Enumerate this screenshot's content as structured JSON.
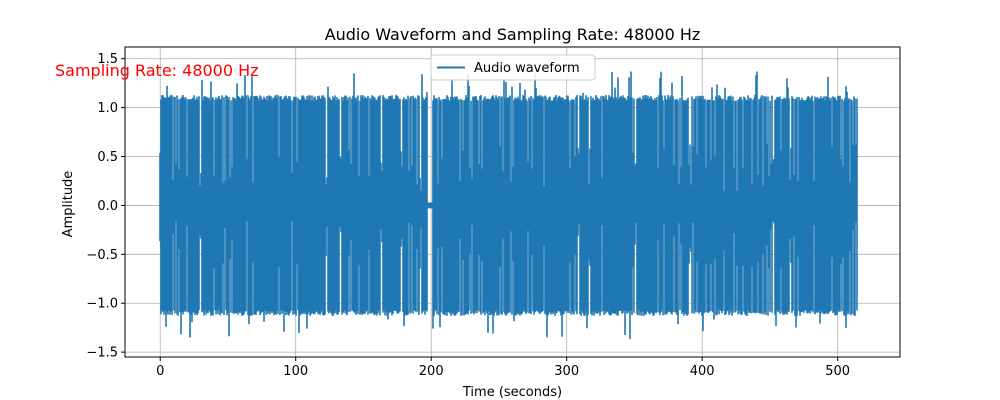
{
  "chart_data": {
    "type": "line",
    "title": "Audio Waveform and Sampling Rate: 48000 Hz",
    "xlabel": "Time (seconds)",
    "ylabel": "Amplitude",
    "xlim": [
      -26,
      546
    ],
    "ylim": [
      -1.55,
      1.62
    ],
    "x_ticks": [
      0,
      100,
      200,
      300,
      400,
      500
    ],
    "y_ticks": [
      -1.5,
      -1.0,
      -0.5,
      0.0,
      0.5,
      1.0,
      1.5
    ],
    "x_tick_labels": [
      "0",
      "100",
      "200",
      "300",
      "400",
      "500"
    ],
    "y_tick_labels": [
      "−1.5",
      "−1.0",
      "−0.5",
      "0.0",
      "0.5",
      "1.0",
      "1.5"
    ],
    "grid": true,
    "legend_position": "top-center",
    "series": [
      {
        "name": "Audio waveform",
        "color": "#1f77b4",
        "x_range": [
          0,
          514
        ],
        "envelope": {
          "typical_peak": 1.13,
          "max": 1.37,
          "min": -1.38
        },
        "quiet_segments": [
          [
            197,
            201
          ]
        ]
      }
    ],
    "annotation": {
      "text": "Sampling Rate: 48000 Hz",
      "color": "#ff0000"
    }
  }
}
